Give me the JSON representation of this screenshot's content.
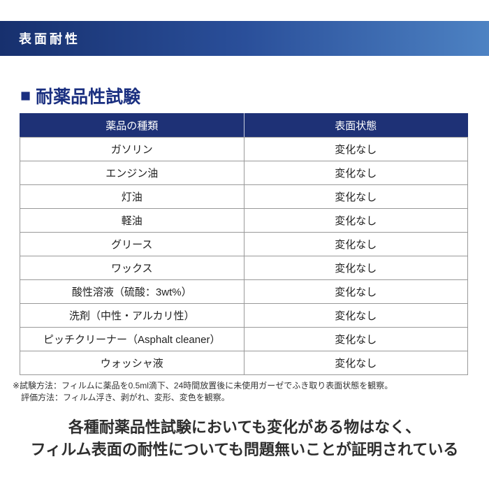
{
  "header_bar": {
    "title": "表面耐性"
  },
  "section": {
    "bullet": "■",
    "title": "耐薬品性試験"
  },
  "table": {
    "columns": [
      "薬品の種類",
      "表面状態"
    ],
    "rows": [
      {
        "chemical": "ガソリン",
        "state": "変化なし"
      },
      {
        "chemical": "エンジン油",
        "state": "変化なし"
      },
      {
        "chemical": "灯油",
        "state": "変化なし"
      },
      {
        "chemical": "軽油",
        "state": "変化なし"
      },
      {
        "chemical": "グリース",
        "state": "変化なし"
      },
      {
        "chemical": "ワックス",
        "state": "変化なし"
      },
      {
        "chemical": "酸性溶液（硫酸：3wt%）",
        "state": "変化なし"
      },
      {
        "chemical": "洗剤（中性・アルカリ性）",
        "state": "変化なし"
      },
      {
        "chemical": "ピッチクリーナー（Asphalt cleaner）",
        "state": "変化なし"
      },
      {
        "chemical": "ウォッシャ液",
        "state": "変化なし"
      }
    ]
  },
  "footnote": {
    "line1": "※試験方法：フィルムに薬品を0.5ml滴下、24時間放置後に未使用ガーゼでふき取り表面状態を観察。",
    "line2": "評価方法：フィルム浮き、剥がれ、変形、変色を観察。"
  },
  "conclusion": {
    "line1": "各種耐薬品性試験においても変化がある物はなく、",
    "line2": "フィルム表面の耐性についても問題無いことが証明されている"
  },
  "colors": {
    "banner_gradient_start": "#17306e",
    "banner_gradient_mid": "#2a4f9a",
    "banner_gradient_end": "#4d82c3",
    "table_header_bg": "#1e3176",
    "section_title_color": "#1a2f80",
    "border_color": "#999999"
  }
}
